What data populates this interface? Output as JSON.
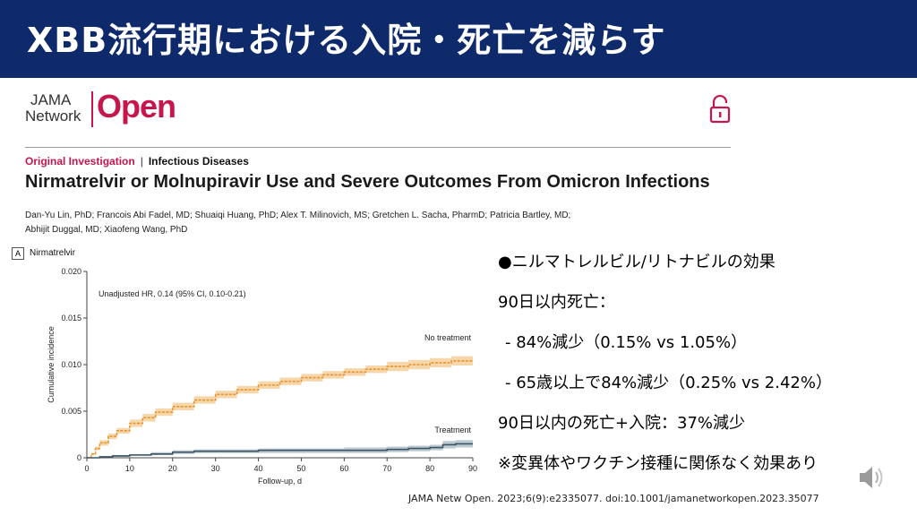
{
  "slide": {
    "title": "XBB流行期における入院・死亡を減らす",
    "citation": "JAMA Netw Open. 2023;6(9):e2335077.  doi:10.1001/jamanetworkopen.2023.35077"
  },
  "journal": {
    "logo_line1": "JAMA",
    "logo_line2": "Network",
    "logo_open": "Open",
    "section_type": "Original Investigation",
    "separator": "|",
    "section_category": "Infectious Diseases",
    "article_title": "Nirmatrelvir or Molnupiravir Use and Severe Outcomes From Omicron Infections",
    "authors_line1": "Dan-Yu Lin, PhD; Francois Abi Fadel, MD; Shuaiqi Huang, PhD; Alex T. Milinovich, MS; Gretchen L. Sacha, PharmD; Patricia Bartley, MD;",
    "authors_line2": "Abhijit Duggal, MD; Xiaofeng Wang, PhD"
  },
  "panel": {
    "label": "A",
    "title": "Nirmatrelvir"
  },
  "summary": {
    "line1": "●ニルマトレルビル/リトナビルの効果",
    "line2": "90日以内死亡：",
    "line3": "- 84%減少（0.15%  vs 1.05%）",
    "line4": "- 65歳以上で84%減少（0.25%  vs 2.42%）",
    "line5": "90日以内の死亡+入院：37%減少",
    "line6": "※変異体やワクチン接種に関係なく効果あり"
  },
  "icons": {
    "unlock": "unlock-icon",
    "speaker": "speaker-icon"
  },
  "colors": {
    "title_bar": "#0e2a6b",
    "brand": "#c7164c",
    "no_treatment": "#e8942f",
    "no_treatment_band": "#f5d2a2",
    "treatment": "#3d5566",
    "treatment_band": "#b5c4cc"
  },
  "chart_data": {
    "type": "line",
    "title": "Nirmatrelvir",
    "xlabel": "Follow-up, d",
    "ylabel": "Cumulative incidence",
    "xlim": [
      0,
      90
    ],
    "ylim": [
      0,
      0.02
    ],
    "xticks": [
      0,
      10,
      20,
      30,
      40,
      50,
      60,
      70,
      80,
      90
    ],
    "yticks": [
      0,
      0.005,
      0.01,
      0.015,
      0.02
    ],
    "xtick_labels": [
      "0",
      "10",
      "20",
      "30",
      "40",
      "50",
      "60",
      "70",
      "80",
      "90"
    ],
    "ytick_labels": [
      "0",
      "0.005",
      "0.010",
      "0.015",
      "0.020"
    ],
    "annotation": "Unadjusted HR, 0.14 (95% CI, 0.10-0.21)",
    "series": [
      {
        "name": "No treatment",
        "x": [
          0,
          1,
          2,
          3,
          5,
          7,
          10,
          13,
          16,
          20,
          25,
          30,
          35,
          40,
          45,
          50,
          55,
          60,
          65,
          70,
          75,
          80,
          85,
          90
        ],
        "y": [
          0,
          0.0004,
          0.001,
          0.0016,
          0.0023,
          0.0029,
          0.0037,
          0.0043,
          0.0049,
          0.0055,
          0.0062,
          0.0068,
          0.0073,
          0.0078,
          0.0082,
          0.0086,
          0.0089,
          0.0092,
          0.0095,
          0.0098,
          0.01,
          0.0102,
          0.0104,
          0.0105
        ],
        "ci_lower": [
          0,
          0.0003,
          0.0008,
          0.0013,
          0.002,
          0.0026,
          0.0033,
          0.0039,
          0.0045,
          0.0051,
          0.0058,
          0.0064,
          0.0069,
          0.0074,
          0.0078,
          0.0082,
          0.0085,
          0.0088,
          0.0091,
          0.0093,
          0.0095,
          0.0097,
          0.0099,
          0.01
        ],
        "ci_upper": [
          0,
          0.0005,
          0.0012,
          0.0019,
          0.0026,
          0.0032,
          0.0041,
          0.0047,
          0.0053,
          0.0059,
          0.0066,
          0.0072,
          0.0077,
          0.0082,
          0.0086,
          0.009,
          0.0093,
          0.0096,
          0.0099,
          0.0103,
          0.0105,
          0.0107,
          0.0109,
          0.011
        ]
      },
      {
        "name": "Treatment",
        "x": [
          0,
          3,
          6,
          10,
          15,
          20,
          25,
          30,
          40,
          50,
          60,
          70,
          75,
          80,
          83,
          86,
          90
        ],
        "y": [
          0,
          0.0001,
          0.0002,
          0.0003,
          0.0004,
          0.0006,
          0.0007,
          0.0007,
          0.0008,
          0.0008,
          0.0008,
          0.0009,
          0.001,
          0.0011,
          0.0014,
          0.0015,
          0.0015
        ],
        "ci_lower": [
          0,
          5e-05,
          0.0001,
          0.0002,
          0.0003,
          0.0004,
          0.0005,
          0.0005,
          0.0005,
          0.0005,
          0.0005,
          0.0006,
          0.0007,
          0.0008,
          0.001,
          0.0011,
          0.0011
        ],
        "ci_upper": [
          0,
          0.00015,
          0.0003,
          0.0004,
          0.0006,
          0.0008,
          0.0009,
          0.0009,
          0.001,
          0.001,
          0.0011,
          0.0012,
          0.0013,
          0.0014,
          0.0018,
          0.0019,
          0.0019
        ]
      }
    ]
  }
}
